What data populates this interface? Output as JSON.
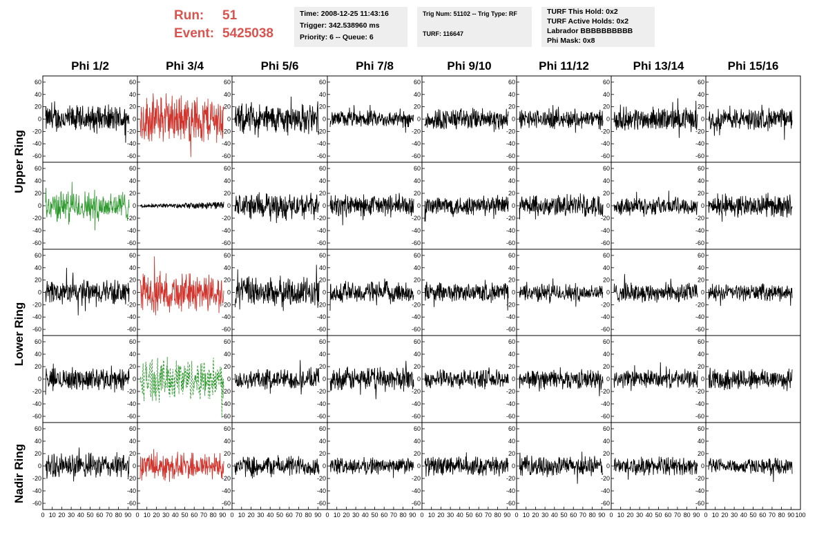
{
  "header": {
    "run_label": "Run:",
    "run_value": "51",
    "event_label": "Event:",
    "event_value": "5425038",
    "box1": [
      "Time: 2008-12-25 11:43:16",
      "Trigger: 342.538960 ms",
      "Priority: 6 -- Queue: 6"
    ],
    "box2": [
      "Trig Num: 51102 -- Trig Type: RF",
      "TURF: 116647"
    ],
    "box3": [
      "TURF This Hold: 0x2",
      "TURF Active Holds: 0x2",
      "Labrador BBBBBBBBBB",
      "Phi Mask: 0x8"
    ]
  },
  "columns": [
    "Phi 1/2",
    "Phi 3/4",
    "Phi 5/6",
    "Phi 7/8",
    "Phi 9/10",
    "Phi 11/12",
    "Phi 13/14",
    "Phi 15/16"
  ],
  "ring_labels": [
    "Upper Ring",
    "Lower Ring",
    "Nadir Ring"
  ],
  "colors": {
    "highlight_red": "#d0342c",
    "highlight_green": "#2e9a2e",
    "trace": "#000000",
    "title_red": "#d9534f"
  },
  "chart_data": {
    "type": "line",
    "rows": 5,
    "cols": 8,
    "xlim": [
      0,
      100
    ],
    "ylim": [
      -70,
      70
    ],
    "ytick_labels": [
      "60",
      "40",
      "20",
      "0",
      "-20",
      "-40",
      "-60"
    ],
    "xtick_labels": [
      "0",
      "10",
      "20",
      "30",
      "40",
      "50",
      "60",
      "70",
      "80",
      "90",
      "100"
    ],
    "panel_styles": [
      [
        "black",
        "red",
        "black",
        "black",
        "black",
        "black",
        "black",
        "black"
      ],
      [
        "green",
        "flat",
        "black",
        "black",
        "black",
        "black",
        "black",
        "black"
      ],
      [
        "black",
        "red",
        "black",
        "black",
        "black",
        "black",
        "black",
        "black"
      ],
      [
        "black",
        "green-dashed",
        "black",
        "black",
        "black",
        "black",
        "black",
        "black"
      ],
      [
        "black",
        "red",
        "black",
        "black",
        "black",
        "black",
        "black",
        "black"
      ]
    ],
    "panel_amplitude": [
      [
        20,
        35,
        22,
        12,
        16,
        14,
        17,
        16
      ],
      [
        22,
        4,
        18,
        16,
        15,
        16,
        13,
        16
      ],
      [
        18,
        28,
        22,
        16,
        14,
        13,
        14,
        12
      ],
      [
        16,
        30,
        15,
        17,
        13,
        14,
        13,
        16
      ],
      [
        18,
        20,
        15,
        12,
        14,
        14,
        13,
        11
      ]
    ]
  }
}
